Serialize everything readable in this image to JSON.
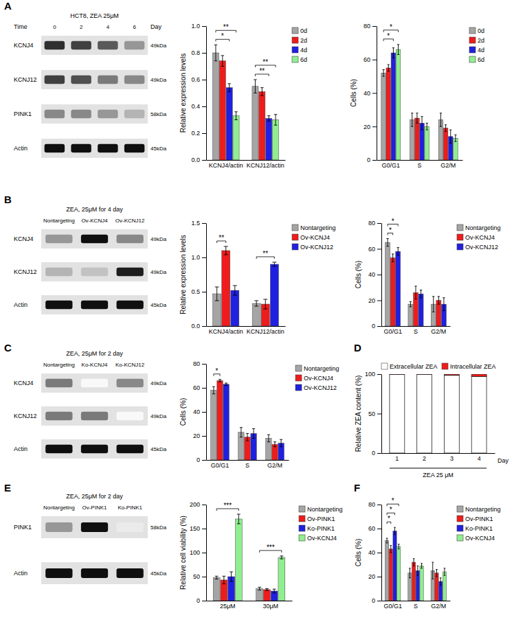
{
  "panel_labels": [
    "A",
    "B",
    "C",
    "D",
    "E",
    "F"
  ],
  "blots": [
    {
      "title": "HCT8, ZEA 25μM",
      "column_header": "Time",
      "column_unit": "Day",
      "columns": [
        "0",
        "2",
        "4",
        "6"
      ],
      "rows": [
        {
          "name": "KCNJ4",
          "size": "49kDa",
          "bands": [
            0.85,
            0.8,
            0.72,
            0.5
          ]
        },
        {
          "name": "KCNJ12",
          "size": "49kDa",
          "bands": [
            0.8,
            0.75,
            0.6,
            0.55
          ]
        },
        {
          "name": "PINK1",
          "size": "58kDa",
          "bands": [
            0.55,
            0.55,
            0.5,
            0.4
          ]
        },
        {
          "name": "Actin",
          "size": "45kDa",
          "bands": [
            0.95,
            0.95,
            0.95,
            0.95
          ]
        }
      ]
    },
    {
      "title": "ZEA, 25μM for 4 day",
      "columns": [
        "Nontargeting",
        "Ov-KCNJ4",
        "Ov-KCNJ12"
      ],
      "rows": [
        {
          "name": "KCNJ4",
          "size": "49kDa",
          "bands": [
            0.5,
            0.95,
            0.55
          ]
        },
        {
          "name": "KCNJ12",
          "size": "49kDa",
          "bands": [
            0.4,
            0.35,
            0.9
          ]
        },
        {
          "name": "Actin",
          "size": "45kDa",
          "bands": [
            0.95,
            0.95,
            0.95
          ]
        }
      ]
    },
    {
      "title": "ZEA, 25μM for 2 day",
      "columns": [
        "Nontargeting",
        "Ko-KCNJ4",
        "Ko-KCNJ12"
      ],
      "rows": [
        {
          "name": "KCNJ4",
          "size": "49kDa",
          "bands": [
            0.6,
            0.05,
            0.55
          ]
        },
        {
          "name": "KCNJ12",
          "size": "49kDa",
          "bands": [
            0.6,
            0.6,
            0.05
          ]
        },
        {
          "name": "Actin",
          "size": "45kDa",
          "bands": [
            0.95,
            0.95,
            0.95
          ]
        }
      ]
    },
    {
      "title": "ZEA, 25μM for 2 day",
      "columns": [
        "Nontargeting",
        "Ov-PINK1",
        "Ko-PINK1"
      ],
      "rows": [
        {
          "name": "PINK1",
          "size": "58kDa",
          "bands": [
            0.5,
            0.95,
            0.15
          ]
        },
        {
          "name": "Actin",
          "size": "45kDa",
          "bands": [
            0.95,
            0.95,
            0.95
          ]
        }
      ]
    }
  ],
  "chart_data": [
    {
      "type": "bar",
      "ylabel": "Relative expression levels",
      "categories": [
        "KCNJ4/actin",
        "KCNJ12/actin"
      ],
      "ylim": [
        0,
        1.0
      ],
      "yticks": [
        {
          "value": 0,
          "label": "0.0"
        },
        {
          "value": 0.2,
          "label": "0.2"
        },
        {
          "value": 0.4,
          "label": "0.4"
        },
        {
          "value": 0.6,
          "label": "0.6"
        },
        {
          "value": 0.8,
          "label": "0.8"
        },
        {
          "value": 1.0,
          "label": "1.0"
        }
      ],
      "legend": "right",
      "series": [
        {
          "name": "0d",
          "color": "#a5a5a5",
          "values": [
            0.8,
            0.55
          ],
          "errors": [
            0.06,
            0.05
          ]
        },
        {
          "name": "2d",
          "color": "#ee1c1c",
          "values": [
            0.74,
            0.51
          ],
          "errors": [
            0.04,
            0.03
          ]
        },
        {
          "name": "4d",
          "color": "#2020e0",
          "values": [
            0.54,
            0.31
          ],
          "errors": [
            0.03,
            0.02
          ]
        },
        {
          "name": "6d",
          "color": "#90ee90",
          "values": [
            0.33,
            0.3
          ],
          "errors": [
            0.03,
            0.04
          ]
        }
      ],
      "annotations": [
        {
          "text": "*",
          "category": "KCNJ4/actin",
          "between": [
            "0d",
            "4d"
          ]
        },
        {
          "text": "**",
          "category": "KCNJ4/actin",
          "between": [
            "0d",
            "6d"
          ]
        },
        {
          "text": "**",
          "category": "KCNJ12/actin",
          "between": [
            "0d",
            "4d"
          ]
        },
        {
          "text": "**",
          "category": "KCNJ12/actin",
          "between": [
            "0d",
            "6d"
          ]
        }
      ]
    },
    {
      "type": "bar",
      "ylabel": "Cells (%)",
      "categories": [
        "G0/G1",
        "S",
        "G2/M"
      ],
      "ylim": [
        0,
        80
      ],
      "yticks": [
        0,
        20,
        40,
        60,
        80
      ],
      "legend": "right",
      "series": [
        {
          "name": "0d",
          "color": "#a5a5a5",
          "values": [
            52,
            24,
            24
          ],
          "errors": [
            2,
            4,
            4
          ]
        },
        {
          "name": "2d",
          "color": "#ee1c1c",
          "values": [
            55,
            25,
            19
          ],
          "errors": [
            2,
            3,
            2
          ]
        },
        {
          "name": "4d",
          "color": "#2020e0",
          "values": [
            64,
            22,
            14
          ],
          "errors": [
            3,
            4,
            4
          ]
        },
        {
          "name": "6d",
          "color": "#90ee90",
          "values": [
            66,
            20,
            13
          ],
          "errors": [
            3,
            2,
            2
          ]
        }
      ],
      "annotations": [
        {
          "text": "*",
          "category": "G0/G1",
          "between": [
            "0d",
            "4d"
          ]
        },
        {
          "text": "*",
          "category": "G0/G1",
          "between": [
            "0d",
            "6d"
          ]
        }
      ]
    },
    {
      "type": "bar",
      "ylabel": "Relative expression levels",
      "categories": [
        "KCNJ4/actin",
        "KCNJ12/actin"
      ],
      "ylim": [
        0,
        1.5
      ],
      "yticks": [
        {
          "value": 0,
          "label": "0.0"
        },
        {
          "value": 0.5,
          "label": "0.5"
        },
        {
          "value": 1.0,
          "label": "1.0"
        },
        {
          "value": 1.5,
          "label": "1.5"
        }
      ],
      "legend": "right",
      "series": [
        {
          "name": "Nontargeting",
          "color": "#a5a5a5",
          "values": [
            0.47,
            0.33
          ],
          "errors": [
            0.1,
            0.04
          ]
        },
        {
          "name": "Ov-KCNJ4",
          "color": "#ee1c1c",
          "values": [
            1.1,
            0.32
          ],
          "errors": [
            0.06,
            0.07
          ]
        },
        {
          "name": "Ov-KCNJ12",
          "color": "#2020e0",
          "values": [
            0.52,
            0.9
          ],
          "errors": [
            0.07,
            0.03
          ]
        }
      ],
      "annotations": [
        {
          "text": "**",
          "category": "KCNJ4/actin",
          "between": [
            "Nontargeting",
            "Ov-KCNJ4"
          ]
        },
        {
          "text": "**",
          "category": "KCNJ12/actin",
          "between": [
            "Nontargeting",
            "Ov-KCNJ12"
          ]
        }
      ]
    },
    {
      "type": "bar",
      "ylabel": "Cells (%)",
      "categories": [
        "G0/G1",
        "S",
        "G2/M"
      ],
      "ylim": [
        0,
        80
      ],
      "yticks": [
        0,
        20,
        40,
        60,
        80
      ],
      "legend": "right",
      "series": [
        {
          "name": "Nontargeting",
          "color": "#a5a5a5",
          "values": [
            65,
            17,
            17
          ],
          "errors": [
            3,
            2,
            6
          ]
        },
        {
          "name": "Ov-KCNJ4",
          "color": "#ee1c1c",
          "values": [
            53,
            26,
            20
          ],
          "errors": [
            3,
            5,
            3
          ]
        },
        {
          "name": "Ov-KCNJ12",
          "color": "#2020e0",
          "values": [
            58,
            25,
            17
          ],
          "errors": [
            3,
            3,
            5
          ]
        }
      ],
      "annotations": [
        {
          "text": "*",
          "category": "G0/G1",
          "between": [
            "Nontargeting",
            "Ov-KCNJ4"
          ]
        },
        {
          "text": "*",
          "category": "G0/G1",
          "between": [
            "Nontargeting",
            "Ov-KCNJ12"
          ]
        }
      ]
    },
    {
      "type": "bar",
      "ylabel": "Cells (%)",
      "categories": [
        "G0/G1",
        "S",
        "G2/M"
      ],
      "ylim": [
        0,
        80
      ],
      "yticks": [
        0,
        20,
        40,
        60,
        80
      ],
      "legend": "right",
      "series": [
        {
          "name": "Nontargeting",
          "color": "#a5a5a5",
          "values": [
            58,
            23,
            18
          ],
          "errors": [
            3,
            4,
            3
          ]
        },
        {
          "name": "Ov-KCNJ4",
          "color": "#ee1c1c",
          "values": [
            66,
            19,
            13
          ],
          "errors": [
            1,
            3,
            2
          ]
        },
        {
          "name": "Ov-KCNJ12",
          "color": "#2020e0",
          "values": [
            63,
            22,
            14
          ],
          "errors": [
            1,
            4,
            3
          ]
        }
      ],
      "annotations": [
        {
          "text": "*",
          "category": "G0/G1",
          "between": [
            "Nontargeting",
            "Ov-KCNJ4"
          ]
        }
      ]
    },
    {
      "type": "bar",
      "stacked": true,
      "ylabel": "Relative ZEA content (%)",
      "xlabel": "Day",
      "footer": "ZEA 25 μM",
      "categories": [
        "1",
        "2",
        "3",
        "4"
      ],
      "ylim": [
        0,
        100
      ],
      "yticks": [
        0,
        50,
        100
      ],
      "legend": "top",
      "series": [
        {
          "name": "Extracellular ZEA",
          "color": "#ffffff",
          "values": [
            99.5,
            99.6,
            98.5,
            97
          ]
        },
        {
          "name": "Intracellular ZEA",
          "color": "#ee1c1c",
          "values": [
            0.5,
            0.4,
            1.5,
            3
          ]
        }
      ]
    },
    {
      "type": "bar",
      "ylabel": "Relative cell viability (%)",
      "categories": [
        "25μM",
        "30μM"
      ],
      "ylim": [
        0,
        200
      ],
      "yticks": [
        0,
        50,
        100,
        150,
        200
      ],
      "legend": "right",
      "series": [
        {
          "name": "Nontargeting",
          "color": "#a5a5a5",
          "values": [
            48,
            25
          ],
          "errors": [
            3,
            3
          ]
        },
        {
          "name": "Ov-PINK1",
          "color": "#ee1c1c",
          "values": [
            43,
            23
          ],
          "errors": [
            8,
            2
          ]
        },
        {
          "name": "Ko-PINK1",
          "color": "#2020e0",
          "values": [
            50,
            20
          ],
          "errors": [
            10,
            4
          ]
        },
        {
          "name": "Ov-KCNJ4",
          "color": "#90ee90",
          "values": [
            170,
            90
          ],
          "errors": [
            10,
            3
          ]
        }
      ],
      "annotations": [
        {
          "text": "***",
          "category": "25μM",
          "between": [
            "Nontargeting",
            "Ov-KCNJ4"
          ]
        },
        {
          "text": "***",
          "category": "30μM",
          "between": [
            "Nontargeting",
            "Ov-KCNJ4"
          ]
        }
      ]
    },
    {
      "type": "bar",
      "ylabel": "Cells (%)",
      "categories": [
        "G0/G1",
        "S",
        "G2/M"
      ],
      "ylim": [
        0,
        80
      ],
      "yticks": [
        0,
        20,
        40,
        60,
        80
      ],
      "legend": "right",
      "series": [
        {
          "name": "Nontargeting",
          "color": "#a5a5a5",
          "values": [
            50,
            23,
            25
          ],
          "errors": [
            2,
            4,
            7
          ]
        },
        {
          "name": "Ov-PINK1",
          "color": "#ee1c1c",
          "values": [
            43,
            32,
            23
          ],
          "errors": [
            3,
            3,
            3
          ]
        },
        {
          "name": "Ko-PINK1",
          "color": "#2020e0",
          "values": [
            58,
            25,
            16
          ],
          "errors": [
            3,
            4,
            3
          ]
        },
        {
          "name": "Ov-KCNJ4",
          "color": "#90ee90",
          "values": [
            45,
            29,
            24
          ],
          "errors": [
            2,
            2,
            3
          ]
        }
      ],
      "annotations": [
        {
          "text": "*",
          "category": "G0/G1",
          "between": [
            "Nontargeting",
            "Ov-PINK1"
          ]
        },
        {
          "text": "*",
          "category": "G0/G1",
          "between": [
            "Nontargeting",
            "Ko-PINK1"
          ]
        },
        {
          "text": "*",
          "category": "G0/G1",
          "between": [
            "Nontargeting",
            "Ov-KCNJ4"
          ]
        }
      ]
    }
  ]
}
